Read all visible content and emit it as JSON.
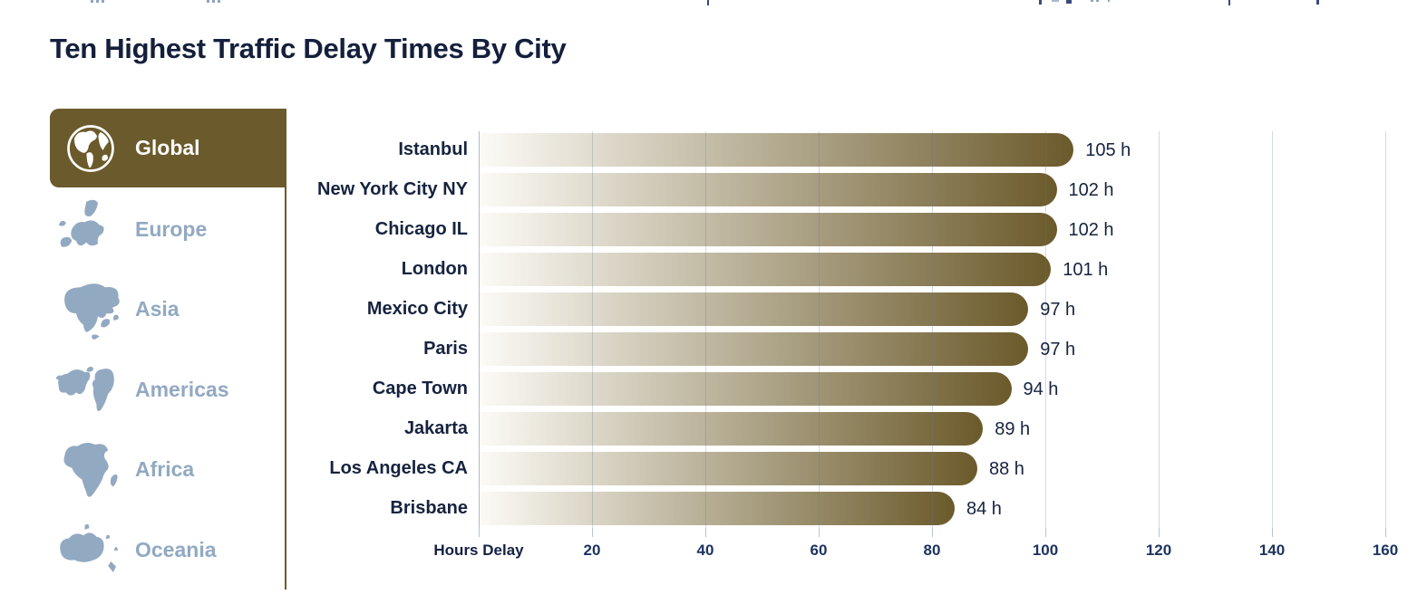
{
  "page": {
    "title": "Ten Highest Traffic Delay Times By City"
  },
  "sidebar": {
    "items": [
      {
        "id": "global",
        "label": "Global",
        "active": true
      },
      {
        "id": "europe",
        "label": "Europe",
        "active": false
      },
      {
        "id": "asia",
        "label": "Asia",
        "active": false
      },
      {
        "id": "americas",
        "label": "Americas",
        "active": false
      },
      {
        "id": "africa",
        "label": "Africa",
        "active": false
      },
      {
        "id": "oceania",
        "label": "Oceania",
        "active": false
      }
    ]
  },
  "chart_data": {
    "type": "bar",
    "orientation": "horizontal",
    "title": "Ten Highest Traffic Delay Times By City",
    "categories": [
      "Istanbul",
      "New York City NY",
      "Chicago IL",
      "London",
      "Mexico City",
      "Paris",
      "Cape Town",
      "Jakarta",
      "Los Angeles CA",
      "Brisbane"
    ],
    "values": [
      105,
      102,
      102,
      101,
      97,
      97,
      94,
      89,
      88,
      84
    ],
    "value_suffix": " h",
    "xlabel": "Hours Delay",
    "xlim": [
      0,
      160
    ],
    "xticks": [
      20,
      40,
      60,
      80,
      100,
      120,
      140,
      160
    ],
    "grid": true,
    "legend": "none"
  },
  "colors": {
    "accent_olive": "#6b5a2b",
    "bar_gradient_start": "#fcfbf6",
    "navy_text": "#141f3c",
    "tick_text": "#1d3461",
    "inactive_blue": "#92a9c2",
    "gridline": "#c7d2de"
  }
}
